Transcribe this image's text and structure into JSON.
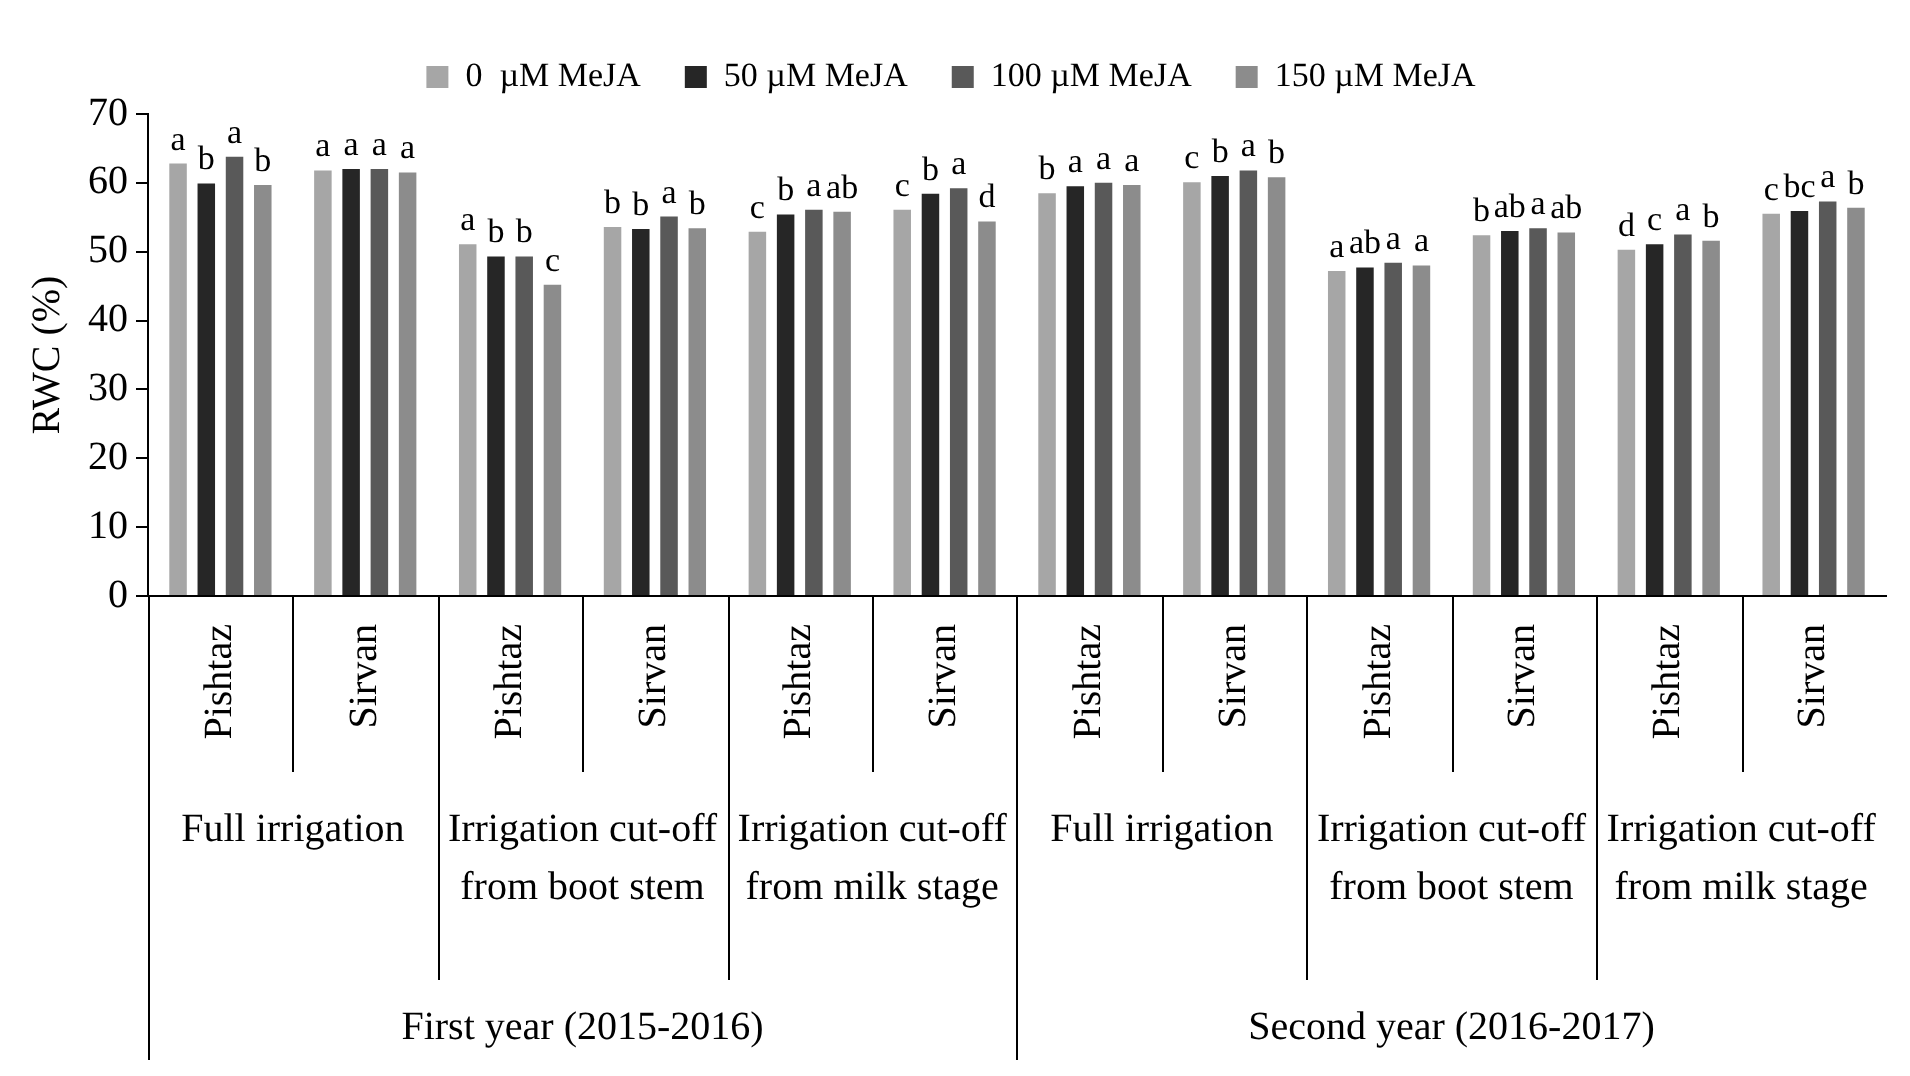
{
  "chart_data": {
    "type": "bar",
    "ylabel": "RWC (%)",
    "categories": [
      "Pishtaz",
      "Sirvan",
      "Pishtaz",
      "Sirvan",
      "Pishtaz",
      "Sirvan",
      "Pishtaz",
      "Sirvan",
      "Pishtaz",
      "Sirvan",
      "Pishtaz",
      "Sirvan"
    ],
    "series": [
      {
        "name": "0  µM MeJA",
        "color": "#a6a6a6",
        "values": [
          62.8,
          61.8,
          51.1,
          53.6,
          52.9,
          56.1,
          58.5,
          60.1,
          47.2,
          52.4,
          50.3,
          55.5
        ],
        "value_labels": [
          "a",
          "a",
          "a",
          "b",
          "c",
          "c",
          "b",
          "c",
          "a",
          "b",
          "d",
          "c"
        ]
      },
      {
        "name": "50 µM MeJA",
        "color": "#262626",
        "values": [
          59.9,
          62.0,
          49.3,
          53.3,
          55.4,
          58.4,
          59.5,
          61.0,
          47.7,
          53.0,
          51.1,
          55.9
        ],
        "value_labels": [
          "b",
          "a",
          "b",
          "b",
          "b",
          "b",
          "a",
          "b",
          "ab",
          "ab",
          "c",
          "bc"
        ]
      },
      {
        "name": "100 µM MeJA",
        "color": "#595959",
        "values": [
          63.8,
          62.0,
          49.3,
          55.1,
          56.1,
          59.2,
          60.0,
          61.8,
          48.4,
          53.4,
          52.5,
          57.3
        ],
        "value_labels": [
          "a",
          "a",
          "b",
          "a",
          "a",
          "a",
          "a",
          "a",
          "a",
          "a",
          "a",
          "a"
        ]
      },
      {
        "name": "150 µM MeJA",
        "color": "#8c8c8c",
        "values": [
          59.7,
          61.5,
          45.2,
          53.4,
          55.8,
          54.4,
          59.7,
          60.8,
          48.0,
          52.8,
          51.6,
          56.4
        ],
        "value_labels": [
          "b",
          "a",
          "c",
          "b",
          "ab",
          "d",
          "a",
          "b",
          "a",
          "ab",
          "b",
          "b"
        ]
      }
    ],
    "ylim": [
      0,
      70
    ],
    "yticks": [
      0,
      10,
      20,
      30,
      40,
      50,
      60,
      70
    ],
    "grid": false,
    "legend": "top",
    "annotations": [
      "Full irrigation",
      "Irrigation cut-off from boot stem",
      "Irrigation cut-off from milk stage",
      "Full irrigation",
      "Irrigation cut-off from boot stem",
      "Irrigation cut-off from milk stage",
      "First year (2015-2016)",
      "Second year (2016-2017)"
    ]
  }
}
